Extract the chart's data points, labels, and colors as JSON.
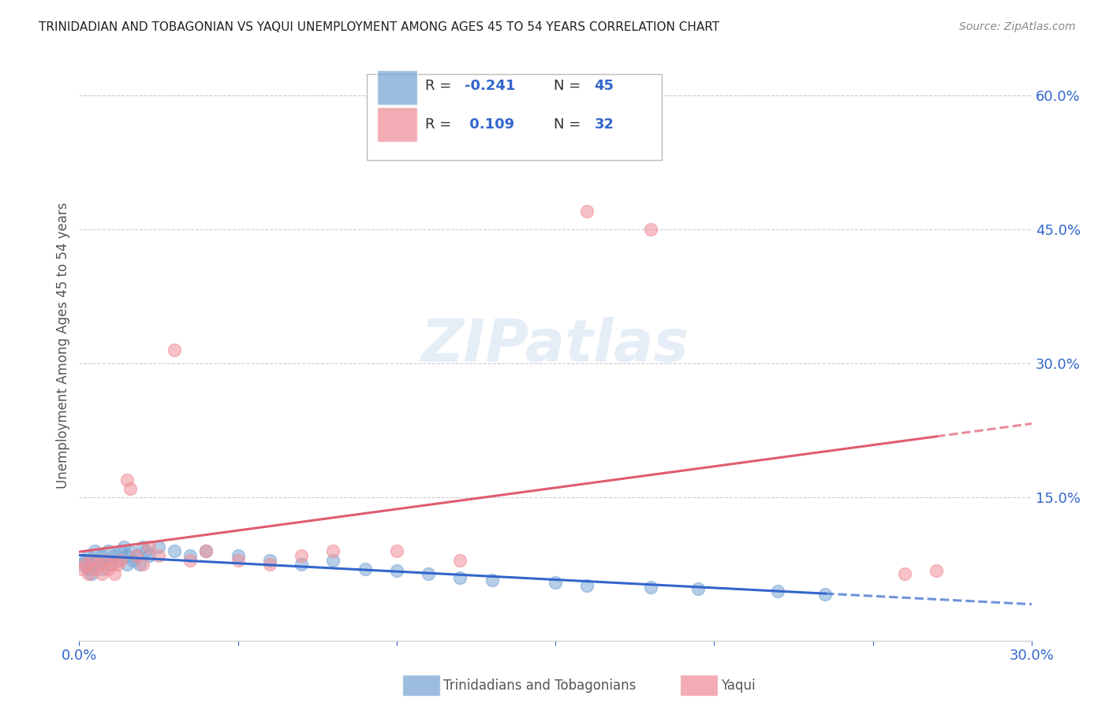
{
  "title": "TRINIDADIAN AND TOBAGONIAN VS YAQUI UNEMPLOYMENT AMONG AGES 45 TO 54 YEARS CORRELATION CHART",
  "source": "Source: ZipAtlas.com",
  "ylabel": "Unemployment Among Ages 45 to 54 years",
  "xlim": [
    0.0,
    0.3
  ],
  "ylim": [
    -0.01,
    0.65
  ],
  "blue_color": "#7ba7d4",
  "pink_color": "#f0919b",
  "line_blue": "#3366cc",
  "line_pink": "#e05c70",
  "background": "#ffffff",
  "trinidadian_x": [
    0.001,
    0.002,
    0.003,
    0.003,
    0.004,
    0.005,
    0.005,
    0.006,
    0.007,
    0.007,
    0.008,
    0.009,
    0.01,
    0.011,
    0.012,
    0.013,
    0.014,
    0.015,
    0.015,
    0.016,
    0.017,
    0.018,
    0.019,
    0.02,
    0.021,
    0.022,
    0.025,
    0.03,
    0.035,
    0.04,
    0.05,
    0.06,
    0.07,
    0.08,
    0.09,
    0.1,
    0.11,
    0.12,
    0.13,
    0.15,
    0.16,
    0.18,
    0.195,
    0.22,
    0.235
  ],
  "trinidadian_y": [
    0.075,
    0.08,
    0.07,
    0.085,
    0.065,
    0.08,
    0.09,
    0.075,
    0.085,
    0.07,
    0.08,
    0.09,
    0.075,
    0.085,
    0.08,
    0.09,
    0.095,
    0.075,
    0.085,
    0.09,
    0.08,
    0.085,
    0.075,
    0.095,
    0.09,
    0.085,
    0.095,
    0.09,
    0.085,
    0.09,
    0.085,
    0.08,
    0.075,
    0.08,
    0.07,
    0.068,
    0.065,
    0.06,
    0.058,
    0.055,
    0.052,
    0.05,
    0.048,
    0.045,
    0.042
  ],
  "yaqui_x": [
    0.001,
    0.002,
    0.003,
    0.004,
    0.005,
    0.006,
    0.007,
    0.008,
    0.009,
    0.01,
    0.011,
    0.012,
    0.013,
    0.015,
    0.016,
    0.018,
    0.02,
    0.022,
    0.025,
    0.03,
    0.035,
    0.04,
    0.05,
    0.06,
    0.07,
    0.08,
    0.1,
    0.12,
    0.16,
    0.18,
    0.26,
    0.27
  ],
  "yaqui_y": [
    0.07,
    0.075,
    0.065,
    0.08,
    0.07,
    0.075,
    0.065,
    0.08,
    0.07,
    0.075,
    0.065,
    0.075,
    0.08,
    0.17,
    0.16,
    0.085,
    0.075,
    0.095,
    0.085,
    0.315,
    0.08,
    0.09,
    0.08,
    0.075,
    0.085,
    0.09,
    0.09,
    0.08,
    0.47,
    0.45,
    0.065,
    0.068
  ]
}
